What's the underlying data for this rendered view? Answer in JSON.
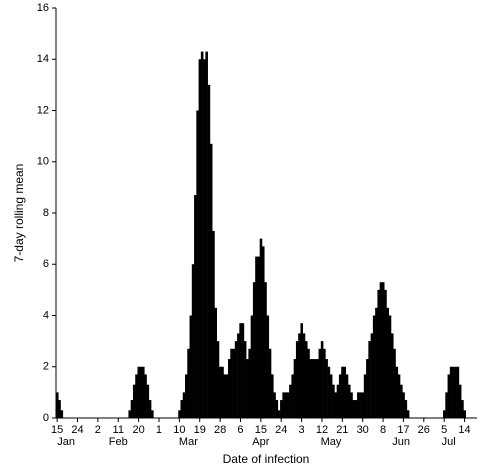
{
  "chart_data": {
    "type": "bar",
    "ylabel": "7-day rolling mean",
    "xlabel": "Date of infection",
    "color": "#000000",
    "ylim": [
      0,
      16
    ],
    "yticks": [
      0,
      2,
      4,
      6,
      8,
      10,
      12,
      14,
      16
    ],
    "categories": [
      "15",
      null,
      null,
      null,
      null,
      null,
      null,
      null,
      null,
      "24",
      null,
      null,
      null,
      null,
      null,
      null,
      null,
      null,
      "2",
      null,
      null,
      null,
      null,
      null,
      null,
      null,
      null,
      "11",
      null,
      null,
      null,
      null,
      null,
      null,
      null,
      null,
      "20",
      null,
      null,
      null,
      null,
      null,
      null,
      null,
      null,
      "1",
      null,
      null,
      null,
      null,
      null,
      null,
      null,
      null,
      "10",
      null,
      null,
      null,
      null,
      null,
      null,
      null,
      null,
      "19",
      null,
      null,
      null,
      null,
      null,
      null,
      null,
      null,
      "28",
      null,
      null,
      null,
      null,
      null,
      null,
      null,
      null,
      "6",
      null,
      null,
      null,
      null,
      null,
      null,
      null,
      null,
      "15",
      null,
      null,
      null,
      null,
      null,
      null,
      null,
      null,
      "24",
      null,
      null,
      null,
      null,
      null,
      null,
      null,
      null,
      "3",
      null,
      null,
      null,
      null,
      null,
      null,
      null,
      null,
      "12",
      null,
      null,
      null,
      null,
      null,
      null,
      null,
      null,
      "21",
      null,
      null,
      null,
      null,
      null,
      null,
      null,
      null,
      "30",
      null,
      null,
      null,
      null,
      null,
      null,
      null,
      null,
      "8",
      null,
      null,
      null,
      null,
      null,
      null,
      null,
      null,
      "17",
      null,
      null,
      null,
      null,
      null,
      null,
      null,
      null,
      "26",
      null,
      null,
      null,
      null,
      null,
      null,
      null,
      null,
      "5",
      null,
      null,
      null,
      null,
      null,
      null,
      null,
      null,
      "14",
      null,
      null,
      null,
      null,
      null
    ],
    "months": [
      null,
      null,
      null,
      null,
      "Jan",
      null,
      null,
      null,
      null,
      null,
      null,
      null,
      null,
      null,
      null,
      null,
      null,
      null,
      null,
      null,
      null,
      null,
      null,
      null,
      null,
      null,
      null,
      "Feb",
      null,
      null,
      null,
      null,
      null,
      null,
      null,
      null,
      null,
      null,
      null,
      null,
      null,
      null,
      null,
      null,
      null,
      null,
      null,
      null,
      null,
      null,
      null,
      null,
      null,
      null,
      null,
      null,
      null,
      null,
      "Mar",
      null,
      null,
      null,
      null,
      null,
      null,
      null,
      null,
      null,
      null,
      null,
      null,
      null,
      null,
      null,
      null,
      null,
      null,
      null,
      null,
      null,
      null,
      null,
      null,
      null,
      null,
      null,
      null,
      null,
      null,
      null,
      "Apr",
      null,
      null,
      null,
      null,
      null,
      null,
      null,
      null,
      null,
      null,
      null,
      null,
      null,
      null,
      null,
      null,
      null,
      null,
      null,
      null,
      null,
      null,
      null,
      null,
      null,
      null,
      null,
      null,
      null,
      null,
      "May",
      null,
      null,
      null,
      null,
      null,
      null,
      null,
      null,
      null,
      null,
      null,
      null,
      null,
      null,
      null,
      null,
      null,
      null,
      null,
      null,
      null,
      null,
      null,
      null,
      null,
      null,
      null,
      null,
      null,
      null,
      "Jun",
      null,
      null,
      null,
      null,
      null,
      null,
      null,
      null,
      null,
      null,
      null,
      null,
      null,
      null,
      null,
      null,
      null,
      null,
      null,
      null,
      "Jul",
      null,
      null,
      null,
      null,
      null,
      null,
      null,
      null,
      null,
      null,
      null
    ],
    "values": [
      1,
      0.7,
      0.3,
      0,
      0,
      0,
      0,
      0,
      0,
      0,
      0,
      0,
      0,
      0,
      0,
      0,
      0,
      0,
      0,
      0,
      0,
      0,
      0,
      0,
      0,
      0,
      0,
      0,
      0,
      0,
      0,
      0,
      0.3,
      0.7,
      1.3,
      1.7,
      2,
      2,
      2,
      1.7,
      1.3,
      0.7,
      0.3,
      0,
      0,
      0,
      0,
      0,
      0,
      0,
      0,
      0,
      0,
      0,
      0.3,
      0.7,
      1,
      1.7,
      2.7,
      4,
      6,
      8.7,
      12,
      14,
      14.3,
      14,
      14.3,
      13,
      10.7,
      7.3,
      4.3,
      3,
      2,
      2,
      1.7,
      1.7,
      2.3,
      2.7,
      2.7,
      3,
      3.3,
      3.7,
      3.7,
      3,
      2.3,
      2.7,
      4,
      5.3,
      6.3,
      6.3,
      7,
      6.7,
      5.3,
      4,
      2.7,
      1.7,
      1,
      0.7,
      0.3,
      0.7,
      1,
      1,
      1,
      1.3,
      1.7,
      2.3,
      3,
      3.3,
      3.7,
      3.3,
      3,
      2.7,
      2.3,
      2.3,
      2.3,
      2.3,
      2.7,
      3,
      2.7,
      2.3,
      2,
      1.7,
      1.3,
      1,
      1.3,
      1.7,
      2,
      2,
      1.7,
      1.3,
      1,
      0.7,
      0.7,
      1,
      1,
      1,
      1.7,
      2.3,
      3,
      3.3,
      4,
      4.3,
      5,
      5.3,
      5.3,
      5,
      4.3,
      4,
      3.3,
      2.7,
      2,
      1.7,
      1.3,
      1,
      0.7,
      0.3,
      0,
      0,
      0,
      0,
      0,
      0,
      0,
      0,
      0,
      0,
      0,
      0,
      0,
      0,
      0,
      0.3,
      1,
      1.7,
      2,
      2,
      2,
      2,
      1.3,
      0.7,
      0.3,
      0,
      0,
      0,
      0,
      0
    ]
  }
}
